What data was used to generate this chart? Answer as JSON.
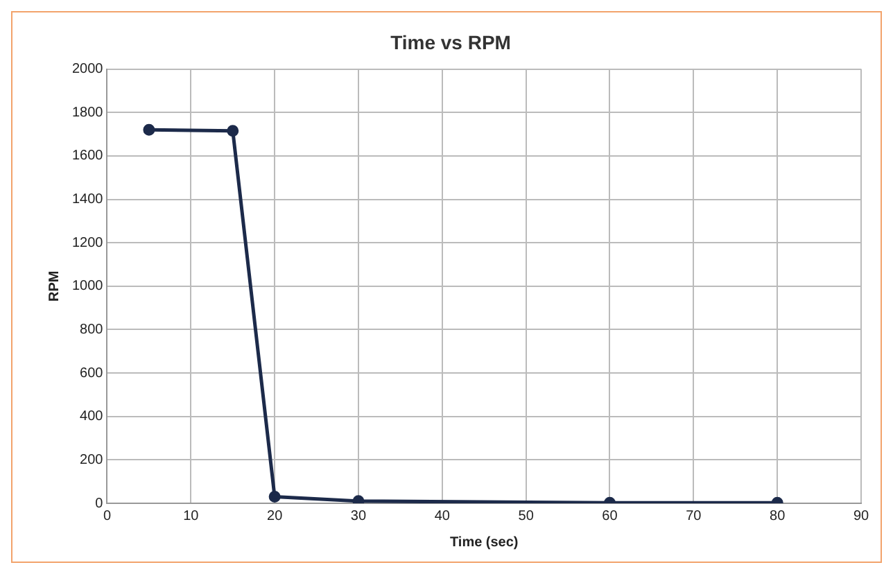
{
  "chart_data": {
    "type": "line",
    "title": "Time vs RPM",
    "xlabel": "Time (sec)",
    "ylabel": "RPM",
    "x": [
      5,
      15,
      20,
      30,
      60,
      80
    ],
    "series": [
      {
        "color": "#1c2a4a",
        "values": [
          1720,
          1715,
          30,
          10,
          2,
          2
        ]
      }
    ],
    "xlim": [
      0,
      90
    ],
    "xticks": [
      0,
      10,
      20,
      30,
      40,
      50,
      60,
      70,
      80,
      90
    ],
    "ylim": [
      0,
      2000
    ],
    "yticks": [
      0,
      200,
      400,
      600,
      800,
      1000,
      1200,
      1400,
      1600,
      1800,
      2000
    ],
    "grid": true,
    "legend": false,
    "marker": "circle",
    "line_style": "solid"
  }
}
